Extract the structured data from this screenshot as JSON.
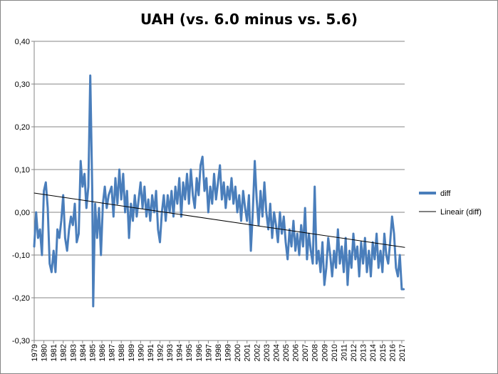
{
  "chart_data": {
    "type": "line",
    "title": "UAH (vs. 6.0 minus vs. 5.6)",
    "xlabel": "",
    "ylabel": "",
    "ylim": [
      -0.3,
      0.4
    ],
    "xlim": [
      1979.0,
      2017.3
    ],
    "yticks": [
      "-0,30",
      "-0,20",
      "-0,10",
      "0,00",
      "0,10",
      "0,20",
      "0,30",
      "0,40"
    ],
    "xticks": [
      "1979",
      "1980",
      "1981",
      "1982",
      "1983",
      "1984",
      "1985",
      "1986",
      "1987",
      "1988",
      "1989",
      "1990",
      "1991",
      "1992",
      "1993",
      "1994",
      "1995",
      "1996",
      "1997",
      "1998",
      "1999",
      "2000",
      "2001",
      "2002",
      "2003",
      "2004",
      "2005",
      "2006",
      "2007",
      "2008",
      "2009",
      "2010",
      "2011",
      "2012",
      "2013",
      "2014",
      "2015",
      "2016",
      "2017"
    ],
    "grid": "horizontal",
    "legend_position": "right",
    "series": [
      {
        "name": "diff",
        "color": "#4a7ebb",
        "points": [
          [
            1979.0,
            -0.08
          ],
          [
            1979.2,
            0.0
          ],
          [
            1979.4,
            -0.06
          ],
          [
            1979.6,
            -0.04
          ],
          [
            1979.8,
            -0.1
          ],
          [
            1980.0,
            0.05
          ],
          [
            1980.2,
            0.07
          ],
          [
            1980.4,
            0.01
          ],
          [
            1980.6,
            -0.12
          ],
          [
            1980.8,
            -0.14
          ],
          [
            1981.0,
            -0.09
          ],
          [
            1981.2,
            -0.14
          ],
          [
            1981.4,
            -0.04
          ],
          [
            1981.6,
            -0.06
          ],
          [
            1981.8,
            -0.02
          ],
          [
            1982.0,
            0.04
          ],
          [
            1982.2,
            -0.06
          ],
          [
            1982.4,
            -0.09
          ],
          [
            1982.6,
            -0.04
          ],
          [
            1982.8,
            -0.01
          ],
          [
            1983.0,
            -0.03
          ],
          [
            1983.2,
            0.02
          ],
          [
            1983.4,
            -0.07
          ],
          [
            1983.6,
            -0.05
          ],
          [
            1983.8,
            0.12
          ],
          [
            1984.0,
            0.06
          ],
          [
            1984.2,
            0.09
          ],
          [
            1984.4,
            0.01
          ],
          [
            1984.6,
            0.06
          ],
          [
            1984.8,
            0.32
          ],
          [
            1985.0,
            0.05
          ],
          [
            1985.1,
            -0.22
          ],
          [
            1985.3,
            0.02
          ],
          [
            1985.5,
            -0.06
          ],
          [
            1985.7,
            0.01
          ],
          [
            1985.9,
            -0.1
          ],
          [
            1986.1,
            0.02
          ],
          [
            1986.3,
            0.06
          ],
          [
            1986.5,
            0.01
          ],
          [
            1986.7,
            0.04
          ],
          [
            1987.0,
            0.06
          ],
          [
            1987.2,
            -0.01
          ],
          [
            1987.4,
            0.08
          ],
          [
            1987.6,
            0.02
          ],
          [
            1987.8,
            0.1
          ],
          [
            1988.0,
            0.03
          ],
          [
            1988.2,
            0.09
          ],
          [
            1988.4,
            0.0
          ],
          [
            1988.6,
            0.05
          ],
          [
            1988.8,
            -0.06
          ],
          [
            1989.0,
            0.02
          ],
          [
            1989.2,
            -0.02
          ],
          [
            1989.4,
            0.04
          ],
          [
            1989.6,
            -0.01
          ],
          [
            1989.8,
            0.03
          ],
          [
            1990.0,
            0.07
          ],
          [
            1990.2,
            0.01
          ],
          [
            1990.4,
            0.06
          ],
          [
            1990.6,
            -0.01
          ],
          [
            1990.8,
            0.03
          ],
          [
            1991.0,
            -0.02
          ],
          [
            1991.2,
            0.04
          ],
          [
            1991.4,
            0.0
          ],
          [
            1991.6,
            0.05
          ],
          [
            1991.8,
            -0.04
          ],
          [
            1992.0,
            -0.07
          ],
          [
            1992.2,
            0.0
          ],
          [
            1992.4,
            0.04
          ],
          [
            1992.6,
            -0.02
          ],
          [
            1992.8,
            0.04
          ],
          [
            1993.0,
            0.0
          ],
          [
            1993.2,
            0.05
          ],
          [
            1993.4,
            -0.01
          ],
          [
            1993.6,
            0.06
          ],
          [
            1993.8,
            0.02
          ],
          [
            1994.0,
            0.08
          ],
          [
            1994.2,
            -0.01
          ],
          [
            1994.4,
            0.07
          ],
          [
            1994.6,
            0.03
          ],
          [
            1994.8,
            0.09
          ],
          [
            1995.0,
            0.02
          ],
          [
            1995.2,
            0.1
          ],
          [
            1995.4,
            0.04
          ],
          [
            1995.6,
            0.01
          ],
          [
            1995.8,
            0.08
          ],
          [
            1996.0,
            0.04
          ],
          [
            1996.2,
            0.11
          ],
          [
            1996.4,
            0.13
          ],
          [
            1996.6,
            0.05
          ],
          [
            1996.8,
            0.08
          ],
          [
            1997.0,
            0.0
          ],
          [
            1997.2,
            0.06
          ],
          [
            1997.4,
            0.02
          ],
          [
            1997.6,
            0.09
          ],
          [
            1997.8,
            0.03
          ],
          [
            1998.0,
            0.07
          ],
          [
            1998.2,
            0.11
          ],
          [
            1998.4,
            0.03
          ],
          [
            1998.6,
            0.07
          ],
          [
            1998.8,
            0.01
          ],
          [
            1999.0,
            0.06
          ],
          [
            1999.2,
            0.03
          ],
          [
            1999.4,
            0.08
          ],
          [
            1999.6,
            0.02
          ],
          [
            1999.8,
            0.06
          ],
          [
            2000.0,
            0.0
          ],
          [
            2000.2,
            0.04
          ],
          [
            2000.4,
            -0.02
          ],
          [
            2000.6,
            0.05
          ],
          [
            2000.8,
            0.01
          ],
          [
            2001.0,
            -0.02
          ],
          [
            2001.2,
            0.04
          ],
          [
            2001.4,
            -0.09
          ],
          [
            2001.6,
            0.0
          ],
          [
            2001.8,
            0.12
          ],
          [
            2002.0,
            0.03
          ],
          [
            2002.2,
            -0.03
          ],
          [
            2002.4,
            0.05
          ],
          [
            2002.6,
            -0.01
          ],
          [
            2002.8,
            0.07
          ],
          [
            2003.0,
            0.0
          ],
          [
            2003.2,
            -0.04
          ],
          [
            2003.4,
            0.02
          ],
          [
            2003.6,
            -0.06
          ],
          [
            2003.8,
            0.0
          ],
          [
            2004.0,
            -0.03
          ],
          [
            2004.2,
            -0.07
          ],
          [
            2004.4,
            0.0
          ],
          [
            2004.6,
            -0.05
          ],
          [
            2004.8,
            -0.01
          ],
          [
            2005.0,
            -0.07
          ],
          [
            2005.2,
            -0.11
          ],
          [
            2005.4,
            -0.04
          ],
          [
            2005.6,
            -0.08
          ],
          [
            2005.8,
            -0.02
          ],
          [
            2006.0,
            -0.09
          ],
          [
            2006.2,
            -0.05
          ],
          [
            2006.4,
            -0.1
          ],
          [
            2006.6,
            -0.03
          ],
          [
            2006.8,
            -0.08
          ],
          [
            2007.0,
            0.01
          ],
          [
            2007.2,
            -0.11
          ],
          [
            2007.4,
            -0.05
          ],
          [
            2007.6,
            -0.09
          ],
          [
            2007.8,
            -0.12
          ],
          [
            2008.0,
            0.06
          ],
          [
            2008.2,
            -0.12
          ],
          [
            2008.4,
            -0.09
          ],
          [
            2008.6,
            -0.14
          ],
          [
            2008.8,
            -0.07
          ],
          [
            2009.0,
            -0.17
          ],
          [
            2009.2,
            -0.13
          ],
          [
            2009.4,
            -0.06
          ],
          [
            2009.6,
            -0.1
          ],
          [
            2009.8,
            -0.15
          ],
          [
            2010.0,
            -0.09
          ],
          [
            2010.2,
            -0.13
          ],
          [
            2010.4,
            -0.04
          ],
          [
            2010.6,
            -0.12
          ],
          [
            2010.8,
            -0.08
          ],
          [
            2011.0,
            -0.14
          ],
          [
            2011.2,
            -0.06
          ],
          [
            2011.4,
            -0.17
          ],
          [
            2011.6,
            -0.09
          ],
          [
            2011.8,
            -0.13
          ],
          [
            2012.0,
            -0.05
          ],
          [
            2012.2,
            -0.11
          ],
          [
            2012.4,
            -0.08
          ],
          [
            2012.6,
            -0.15
          ],
          [
            2012.8,
            -0.07
          ],
          [
            2013.0,
            -0.12
          ],
          [
            2013.2,
            -0.06
          ],
          [
            2013.4,
            -0.14
          ],
          [
            2013.6,
            -0.09
          ],
          [
            2013.8,
            -0.15
          ],
          [
            2014.0,
            -0.07
          ],
          [
            2014.2,
            -0.11
          ],
          [
            2014.4,
            -0.05
          ],
          [
            2014.6,
            -0.13
          ],
          [
            2014.8,
            -0.09
          ],
          [
            2015.0,
            -0.14
          ],
          [
            2015.2,
            -0.05
          ],
          [
            2015.4,
            -0.1
          ],
          [
            2015.6,
            -0.12
          ],
          [
            2015.8,
            -0.07
          ],
          [
            2016.0,
            -0.01
          ],
          [
            2016.2,
            -0.05
          ],
          [
            2016.4,
            -0.13
          ],
          [
            2016.6,
            -0.15
          ],
          [
            2016.8,
            -0.1
          ],
          [
            2017.0,
            -0.18
          ],
          [
            2017.2,
            -0.18
          ]
        ]
      },
      {
        "name": "Lineair (diff)",
        "color": "#000000",
        "type": "trendline",
        "points": [
          [
            1979.0,
            0.045
          ],
          [
            2017.3,
            -0.082
          ]
        ]
      }
    ]
  }
}
